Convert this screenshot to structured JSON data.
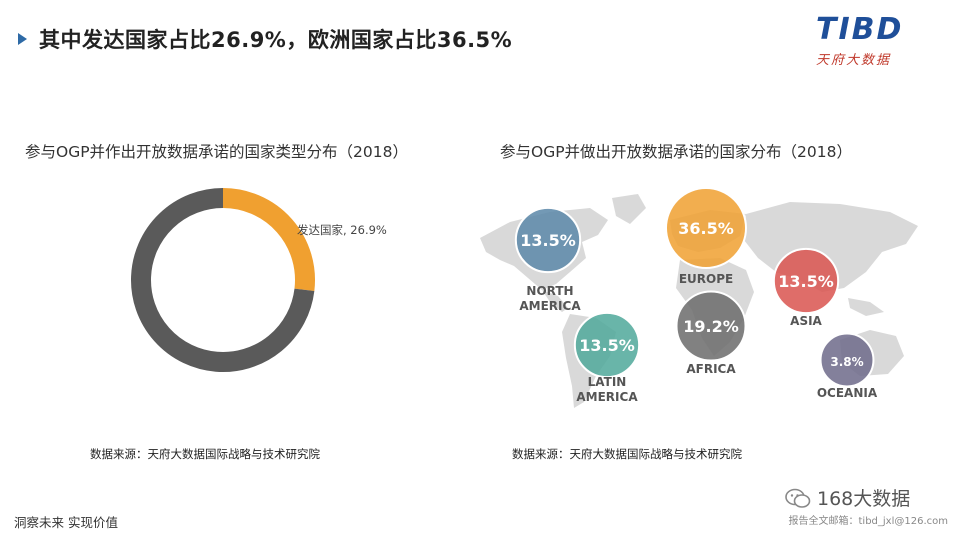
{
  "header": {
    "title": "其中发达国家占比26.9%，欧洲国家占比36.5%",
    "logo_main": "TIBD",
    "logo_sub": "天府大数据"
  },
  "chart_data": [
    {
      "type": "pie",
      "title": "参与OGP并作出开放数据承诺的国家类型分布（2018）",
      "variant": "donut",
      "slices": [
        {
          "label": "发达国家",
          "value": 26.9,
          "color": "#f0a030",
          "data_label": "发达国家, 26.9%"
        },
        {
          "label": "",
          "value": 73.1,
          "color": "#5a5a5a",
          "data_label": ""
        }
      ]
    },
    {
      "type": "bubble-map",
      "title": "参与OGP并做出开放数据承诺的国家分布（2018）",
      "regions": [
        {
          "name": "NORTH\nAMERICA",
          "value": 13.5,
          "value_label": "13.5%",
          "color": "#5b87a8"
        },
        {
          "name": "EUROPE",
          "value": 36.5,
          "value_label": "36.5%",
          "color": "#f0a030"
        },
        {
          "name": "ASIA",
          "value": 13.5,
          "value_label": "13.5%",
          "color": "#d9534f"
        },
        {
          "name": "LATIN\nAMERICA",
          "value": 13.5,
          "value_label": "13.5%",
          "color": "#4fa89a"
        },
        {
          "name": "AFRICA",
          "value": 19.2,
          "value_label": "19.2%",
          "color": "#6b6b6b"
        },
        {
          "name": "OCEANIA",
          "value": 3.8,
          "value_label": "3.8%",
          "color": "#6d6a8a"
        }
      ]
    }
  ],
  "sources": {
    "left": "数据来源：天府大数据国际战略与技术研究院",
    "right": "数据来源：天府大数据国际战略与技术研究院"
  },
  "footer": {
    "slogan": "洞察未来 实现价值",
    "wechat_name": "168大数据",
    "email_note": "报告全文邮箱：tibd_jxl@126.com"
  },
  "icons": [
    "title-arrow-icon",
    "wechat-icon"
  ]
}
